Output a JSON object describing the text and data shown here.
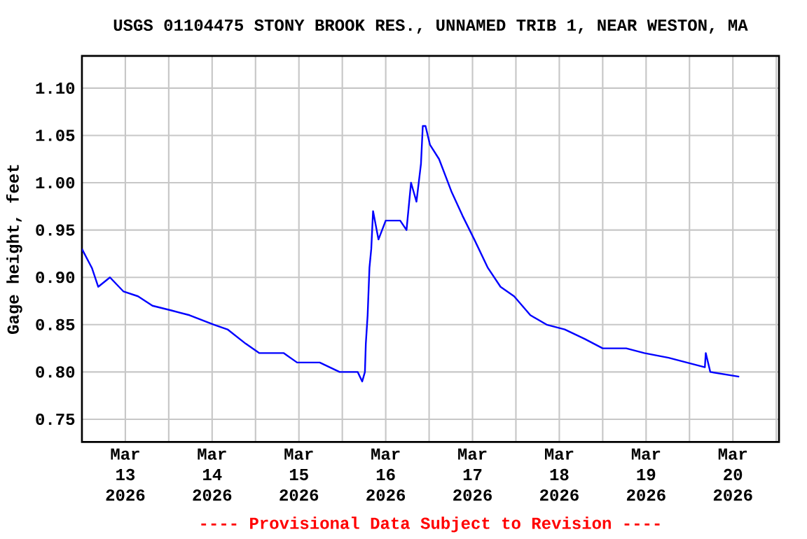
{
  "chart_data": {
    "type": "line",
    "title": "USGS 01104475 STONY BROOK RES., UNNAMED TRIB 1, NEAR WESTON, MA",
    "ylabel": "Gage height, feet",
    "annotations": [
      "---- Provisional Data Subject to Revision ----"
    ],
    "series": [
      {
        "color": "#0000ff",
        "x": [
          "2026-03-12T12:00",
          "2026-03-12T14:45",
          "2026-03-12T16:30",
          "2026-03-12T19:45",
          "2026-03-12T23:30",
          "2026-03-13T03:30",
          "2026-03-13T07:30",
          "2026-03-13T12:45",
          "2026-03-13T17:45",
          "2026-03-14T00:30",
          "2026-03-14T04:15",
          "2026-03-14T09:15",
          "2026-03-14T13:00",
          "2026-03-14T19:45",
          "2026-03-14T23:30",
          "2026-03-15T05:45",
          "2026-03-15T11:15",
          "2026-03-15T16:15",
          "2026-03-15T17:30",
          "2026-03-15T18:15",
          "2026-03-15T18:30",
          "2026-03-15T19:00",
          "2026-03-15T19:30",
          "2026-03-15T20:00",
          "2026-03-15T20:30",
          "2026-03-15T22:00",
          "2026-03-16T00:00",
          "2026-03-16T04:00",
          "2026-03-16T05:45",
          "2026-03-16T07:00",
          "2026-03-16T08:30",
          "2026-03-16T09:45",
          "2026-03-16T10:15",
          "2026-03-16T11:00",
          "2026-03-16T12:15",
          "2026-03-16T14:45",
          "2026-03-16T18:15",
          "2026-03-16T21:15",
          "2026-03-17T00:30",
          "2026-03-17T04:15",
          "2026-03-17T07:45",
          "2026-03-17T11:30",
          "2026-03-17T16:00",
          "2026-03-17T20:30",
          "2026-03-18T01:30",
          "2026-03-18T07:00",
          "2026-03-18T12:00",
          "2026-03-18T18:30",
          "2026-03-18T23:30",
          "2026-03-19T06:15",
          "2026-03-19T11:15",
          "2026-03-19T16:15",
          "2026-03-19T16:30",
          "2026-03-19T17:45",
          "2026-03-20T01:45"
        ],
        "values": [
          0.93,
          0.91,
          0.89,
          0.9,
          0.885,
          0.88,
          0.87,
          0.865,
          0.86,
          0.85,
          0.845,
          0.83,
          0.82,
          0.82,
          0.81,
          0.81,
          0.8,
          0.8,
          0.79,
          0.8,
          0.83,
          0.86,
          0.91,
          0.93,
          0.97,
          0.94,
          0.96,
          0.96,
          0.95,
          1.0,
          0.98,
          1.02,
          1.06,
          1.06,
          1.04,
          1.025,
          0.99,
          0.965,
          0.94,
          0.91,
          0.89,
          0.88,
          0.86,
          0.85,
          0.845,
          0.835,
          0.825,
          0.825,
          0.82,
          0.815,
          0.81,
          0.805,
          0.82,
          0.8,
          0.795
        ]
      }
    ],
    "xlim": [
      "2026-03-12T12:00",
      "2026-03-20T12:45"
    ],
    "xticks": [
      {
        "value": "2026-03-13",
        "label": "Mar 13 2026"
      },
      {
        "value": "2026-03-13T12:00",
        "label": null
      },
      {
        "value": "2026-03-14",
        "label": "Mar 14 2026"
      },
      {
        "value": "2026-03-14T12:00",
        "label": null
      },
      {
        "value": "2026-03-15",
        "label": "Mar 15 2026"
      },
      {
        "value": "2026-03-15T12:00",
        "label": null
      },
      {
        "value": "2026-03-16",
        "label": "Mar 16 2026"
      },
      {
        "value": "2026-03-16T12:00",
        "label": null
      },
      {
        "value": "2026-03-17",
        "label": "Mar 17 2026"
      },
      {
        "value": "2026-03-17T12:00",
        "label": null
      },
      {
        "value": "2026-03-18",
        "label": "Mar 18 2026"
      },
      {
        "value": "2026-03-18T12:00",
        "label": null
      },
      {
        "value": "2026-03-19",
        "label": "Mar 19 2026"
      },
      {
        "value": "2026-03-19T12:00",
        "label": null
      },
      {
        "value": "2026-03-20",
        "label": "Mar 20 2026"
      },
      {
        "value": "2026-03-20T12:00",
        "label": null
      }
    ],
    "ylim": [
      0.726,
      1.134
    ],
    "yticks": [
      0.75,
      {
        "value": 0.8,
        "label": "0.80"
      },
      0.85,
      {
        "value": 0.9,
        "label": "0.90"
      },
      0.95,
      {
        "value": 1.0,
        "label": "1.00"
      },
      1.05,
      {
        "value": 1.1,
        "label": "1.10"
      }
    ],
    "grid": true,
    "marker": "none",
    "line_style": "solid"
  }
}
